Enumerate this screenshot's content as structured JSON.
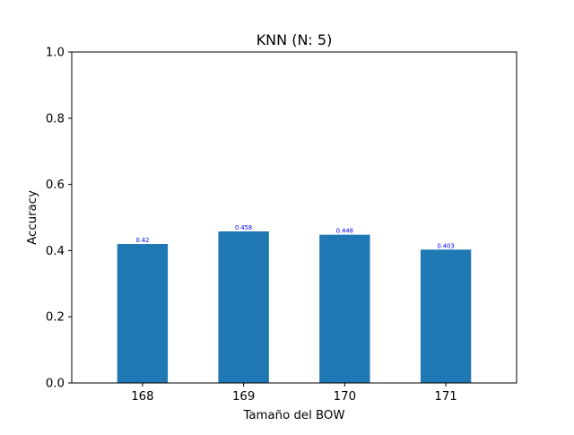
{
  "chart_data": {
    "type": "bar",
    "title": "KNN (N: 5)",
    "xlabel": "Tamaño del BOW",
    "ylabel": "Accuracy",
    "categories": [
      "168",
      "169",
      "170",
      "171"
    ],
    "values": [
      0.42,
      0.458,
      0.448,
      0.403
    ],
    "value_labels": [
      "0.42",
      "0.458",
      "0.448",
      "0.403"
    ],
    "ylim": [
      0,
      1.0
    ],
    "yticks": [
      0.0,
      0.2,
      0.4,
      0.6,
      0.8,
      1.0
    ],
    "ytick_labels": [
      "0.0",
      "0.2",
      "0.4",
      "0.6",
      "0.8",
      "1.0"
    ],
    "grid": false,
    "legend": "none",
    "colors": {
      "bar": "#1f77b4",
      "value_label": "#0000ff",
      "axis": "#000000",
      "background": "#ffffff"
    }
  }
}
